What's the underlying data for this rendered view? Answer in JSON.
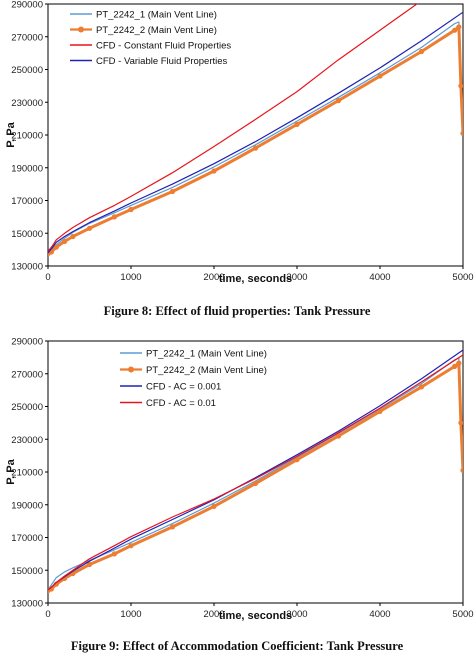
{
  "chart_data": [
    {
      "type": "line",
      "caption": "Figure 8: Effect of fluid properties: Tank Pressure",
      "xlabel": "time, seconds",
      "ylabel": "P, Pa",
      "xlim": [
        0,
        5000
      ],
      "ylim": [
        130000,
        290000
      ],
      "xticks": [
        0,
        1000,
        2000,
        3000,
        4000,
        5000
      ],
      "yticks": [
        130000,
        150000,
        170000,
        190000,
        210000,
        230000,
        250000,
        270000,
        290000
      ],
      "legend_position": "top-left",
      "series": [
        {
          "name": "PT_2242_1 (Main Vent Line)",
          "color": "#5b9bd5",
          "width": 1.2,
          "markers": false,
          "x": [
            0,
            40,
            100,
            200,
            300,
            500,
            800,
            1000,
            1500,
            2000,
            2500,
            3000,
            3500,
            4000,
            4500,
            4900,
            4950,
            4975,
            5000
          ],
          "y": [
            138000,
            139500,
            143000,
            147000,
            150500,
            156000,
            162500,
            167000,
            178000,
            190500,
            204000,
            218500,
            233000,
            248000,
            263500,
            278000,
            279000,
            240000,
            212000
          ]
        },
        {
          "name": "PT_2242_2 (Main Vent Line)",
          "color": "#ed7d31",
          "width": 3,
          "markers": true,
          "x": [
            0,
            40,
            100,
            200,
            300,
            500,
            800,
            1000,
            1500,
            2000,
            2500,
            3000,
            3500,
            4000,
            4500,
            4900,
            4950,
            4975,
            5000
          ],
          "y": [
            137500,
            138500,
            141500,
            145000,
            148000,
            153000,
            160000,
            164500,
            175500,
            188000,
            202000,
            216500,
            231000,
            246000,
            261000,
            274000,
            276000,
            240000,
            211000
          ]
        },
        {
          "name": "CFD - Constant Fluid Properties",
          "color": "#e8141c",
          "width": 1.2,
          "markers": false,
          "x": [
            0,
            50,
            100,
            200,
            300,
            500,
            800,
            1000,
            1500,
            2000,
            2500,
            3000,
            3500,
            4000,
            4500
          ],
          "y": [
            139000,
            142000,
            146000,
            150000,
            153500,
            159500,
            167000,
            172500,
            187000,
            203000,
            219500,
            236500,
            256000,
            274000,
            292000
          ]
        },
        {
          "name": "CFD - Variable Fluid Properties",
          "color": "#1f22b5",
          "width": 1.2,
          "markers": false,
          "x": [
            0,
            50,
            100,
            200,
            300,
            500,
            800,
            1000,
            1500,
            2000,
            2500,
            3000,
            3500,
            4000,
            4500,
            5000
          ],
          "y": [
            138000,
            141000,
            144500,
            148000,
            151000,
            156500,
            163500,
            168500,
            180000,
            192500,
            206000,
            220500,
            235500,
            251000,
            267500,
            285000
          ]
        }
      ]
    },
    {
      "type": "line",
      "caption": "Figure 9: Effect of Accommodation Coefficient: Tank Pressure",
      "xlabel": "time, seconds",
      "ylabel": "P, Pa",
      "xlim": [
        0,
        5000
      ],
      "ylim": [
        130000,
        290000
      ],
      "xticks": [
        0,
        1000,
        2000,
        3000,
        4000,
        5000
      ],
      "yticks": [
        130000,
        150000,
        170000,
        190000,
        210000,
        230000,
        250000,
        270000,
        290000
      ],
      "legend_position": "top-left",
      "series": [
        {
          "name": "PT_2242_1 (Main Vent Line)",
          "color": "#5b9bd5",
          "width": 1.2,
          "markers": false,
          "x": [
            0,
            40,
            100,
            200,
            300,
            500,
            800,
            1000,
            1500,
            2000,
            2500,
            3000,
            3500,
            4000,
            4500,
            4900,
            4950,
            4975,
            5000
          ],
          "y": [
            138000,
            141000,
            145500,
            149000,
            151500,
            156000,
            162500,
            167000,
            178500,
            191000,
            204500,
            219000,
            233500,
            248500,
            264000,
            278500,
            279500,
            240000,
            212000
          ]
        },
        {
          "name": "PT_2242_2 (Main Vent Line)",
          "color": "#ed7d31",
          "width": 3,
          "markers": true,
          "x": [
            0,
            40,
            100,
            200,
            300,
            500,
            800,
            1000,
            1500,
            2000,
            2500,
            3000,
            3500,
            4000,
            4500,
            4900,
            4950,
            4975,
            5000
          ],
          "y": [
            137500,
            138500,
            141500,
            145000,
            148000,
            153500,
            160000,
            165000,
            176500,
            189000,
            203000,
            217500,
            232000,
            247000,
            262000,
            274500,
            276500,
            240000,
            211000
          ]
        },
        {
          "name": "CFD - AC = 0.001",
          "color": "#1f22b5",
          "width": 1.2,
          "markers": false,
          "x": [
            0,
            50,
            100,
            200,
            300,
            500,
            800,
            1000,
            1500,
            2000,
            2500,
            3000,
            3500,
            4000,
            4500,
            5000
          ],
          "y": [
            138000,
            140000,
            142500,
            146000,
            149500,
            155500,
            163500,
            169000,
            181000,
            193000,
            206500,
            220500,
            235000,
            250500,
            267000,
            284500
          ]
        },
        {
          "name": "CFD - AC = 0.01",
          "color": "#e8141c",
          "width": 1.2,
          "markers": false,
          "x": [
            0,
            50,
            100,
            200,
            300,
            500,
            800,
            1000,
            1500,
            2000,
            2500,
            3000,
            3500,
            4000,
            4500,
            5000
          ],
          "y": [
            138000,
            140000,
            142500,
            146500,
            150000,
            157000,
            165000,
            170500,
            182500,
            193500,
            206000,
            219500,
            234000,
            249000,
            265000,
            281500
          ]
        }
      ]
    }
  ]
}
